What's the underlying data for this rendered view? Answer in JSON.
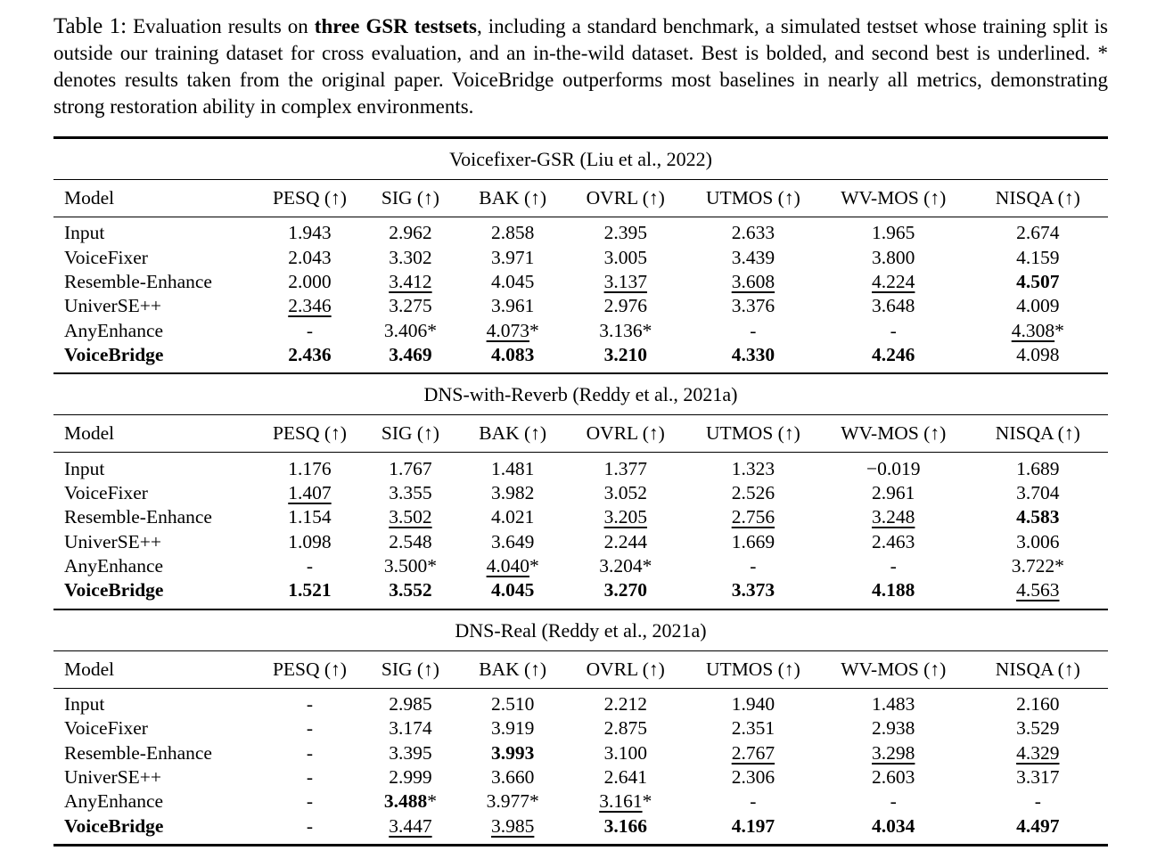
{
  "caption": {
    "label": "Table 1:",
    "pre": " Evaluation results on ",
    "bold": "three GSR testsets",
    "post": ", including a standard benchmark, a simulated testset whose training split is outside our training dataset for cross evaluation, and an in-the-wild dataset.  Best is bolded, and second best is underlined.  * denotes results taken from the original paper.  VoiceBridge outperforms most baselines in nearly all metrics, demonstrating strong restoration ability in complex environments."
  },
  "columns": [
    "Model",
    "PESQ (↑)",
    "SIG (↑)",
    "BAK (↑)",
    "OVRL (↑)",
    "UTMOS (↑)",
    "WV-MOS (↑)",
    "NISQA (↑)"
  ],
  "chart_data": [
    {
      "type": "table",
      "title": "Voicefixer-GSR (Liu et al., 2022)",
      "rows": [
        [
          {
            "t": "Input"
          },
          {
            "t": "1.943"
          },
          {
            "t": "2.962"
          },
          {
            "t": "2.858"
          },
          {
            "t": "2.395"
          },
          {
            "t": "2.633"
          },
          {
            "t": "1.965"
          },
          {
            "t": "2.674"
          }
        ],
        [
          {
            "t": "VoiceFixer"
          },
          {
            "t": "2.043"
          },
          {
            "t": "3.302"
          },
          {
            "t": "3.971"
          },
          {
            "t": "3.005"
          },
          {
            "t": "3.439"
          },
          {
            "t": "3.800"
          },
          {
            "t": "4.159"
          }
        ],
        [
          {
            "t": "Resemble-Enhance"
          },
          {
            "t": "2.000"
          },
          {
            "t": "3.412",
            "u": true
          },
          {
            "t": "4.045"
          },
          {
            "t": "3.137",
            "u": true
          },
          {
            "t": "3.608",
            "u": true
          },
          {
            "t": "4.224",
            "u": true
          },
          {
            "t": "4.507",
            "b": true
          }
        ],
        [
          {
            "t": "UniverSE++"
          },
          {
            "t": "2.346",
            "u": true
          },
          {
            "t": "3.275"
          },
          {
            "t": "3.961"
          },
          {
            "t": "2.976"
          },
          {
            "t": "3.376"
          },
          {
            "t": "3.648"
          },
          {
            "t": "4.009"
          }
        ],
        [
          {
            "t": "AnyEnhance"
          },
          {
            "t": "-"
          },
          {
            "t": "3.406",
            "star": true
          },
          {
            "t": "4.073",
            "u": true,
            "star": true
          },
          {
            "t": "3.136",
            "star": true
          },
          {
            "t": "-"
          },
          {
            "t": "-"
          },
          {
            "t": "4.308",
            "u": true,
            "star": true
          }
        ],
        [
          {
            "t": "VoiceBridge",
            "b": true
          },
          {
            "t": "2.436",
            "b": true
          },
          {
            "t": "3.469",
            "b": true
          },
          {
            "t": "4.083",
            "b": true
          },
          {
            "t": "3.210",
            "b": true
          },
          {
            "t": "4.330",
            "b": true
          },
          {
            "t": "4.246",
            "b": true
          },
          {
            "t": "4.098"
          }
        ]
      ]
    },
    {
      "type": "table",
      "title": "DNS-with-Reverb (Reddy et al., 2021a)",
      "rows": [
        [
          {
            "t": "Input"
          },
          {
            "t": "1.176"
          },
          {
            "t": "1.767"
          },
          {
            "t": "1.481"
          },
          {
            "t": "1.377"
          },
          {
            "t": "1.323"
          },
          {
            "t": "−0.019"
          },
          {
            "t": "1.689"
          }
        ],
        [
          {
            "t": "VoiceFixer"
          },
          {
            "t": "1.407",
            "u": true
          },
          {
            "t": "3.355"
          },
          {
            "t": "3.982"
          },
          {
            "t": "3.052"
          },
          {
            "t": "2.526"
          },
          {
            "t": "2.961"
          },
          {
            "t": "3.704"
          }
        ],
        [
          {
            "t": "Resemble-Enhance"
          },
          {
            "t": "1.154"
          },
          {
            "t": "3.502",
            "u": true
          },
          {
            "t": "4.021"
          },
          {
            "t": "3.205",
            "u": true
          },
          {
            "t": "2.756",
            "u": true
          },
          {
            "t": "3.248",
            "u": true
          },
          {
            "t": "4.583",
            "b": true
          }
        ],
        [
          {
            "t": "UniverSE++"
          },
          {
            "t": "1.098"
          },
          {
            "t": "2.548"
          },
          {
            "t": "3.649"
          },
          {
            "t": "2.244"
          },
          {
            "t": "1.669"
          },
          {
            "t": "2.463"
          },
          {
            "t": "3.006"
          }
        ],
        [
          {
            "t": "AnyEnhance"
          },
          {
            "t": "-"
          },
          {
            "t": "3.500",
            "star": true
          },
          {
            "t": "4.040",
            "u": true,
            "star": true
          },
          {
            "t": "3.204",
            "star": true
          },
          {
            "t": "-"
          },
          {
            "t": "-"
          },
          {
            "t": "3.722",
            "star": true
          }
        ],
        [
          {
            "t": "VoiceBridge",
            "b": true
          },
          {
            "t": "1.521",
            "b": true
          },
          {
            "t": "3.552",
            "b": true
          },
          {
            "t": "4.045",
            "b": true
          },
          {
            "t": "3.270",
            "b": true
          },
          {
            "t": "3.373",
            "b": true
          },
          {
            "t": "4.188",
            "b": true
          },
          {
            "t": "4.563",
            "u": true
          }
        ]
      ]
    },
    {
      "type": "table",
      "title": "DNS-Real (Reddy et al., 2021a)",
      "rows": [
        [
          {
            "t": "Input"
          },
          {
            "t": "-"
          },
          {
            "t": "2.985"
          },
          {
            "t": "2.510"
          },
          {
            "t": "2.212"
          },
          {
            "t": "1.940"
          },
          {
            "t": "1.483"
          },
          {
            "t": "2.160"
          }
        ],
        [
          {
            "t": "VoiceFixer"
          },
          {
            "t": "-"
          },
          {
            "t": "3.174"
          },
          {
            "t": "3.919"
          },
          {
            "t": "2.875"
          },
          {
            "t": "2.351"
          },
          {
            "t": "2.938"
          },
          {
            "t": "3.529"
          }
        ],
        [
          {
            "t": "Resemble-Enhance"
          },
          {
            "t": "-"
          },
          {
            "t": "3.395"
          },
          {
            "t": "3.993",
            "b": true
          },
          {
            "t": "3.100"
          },
          {
            "t": "2.767",
            "u": true
          },
          {
            "t": "3.298",
            "u": true
          },
          {
            "t": "4.329",
            "u": true
          }
        ],
        [
          {
            "t": "UniverSE++"
          },
          {
            "t": "-"
          },
          {
            "t": "2.999"
          },
          {
            "t": "3.660"
          },
          {
            "t": "2.641"
          },
          {
            "t": "2.306"
          },
          {
            "t": "2.603"
          },
          {
            "t": "3.317"
          }
        ],
        [
          {
            "t": "AnyEnhance"
          },
          {
            "t": "-"
          },
          {
            "t": "3.488",
            "b": true,
            "star": true
          },
          {
            "t": "3.977",
            "star": true
          },
          {
            "t": "3.161",
            "u": true,
            "star": true
          },
          {
            "t": "-"
          },
          {
            "t": "-"
          },
          {
            "t": "-"
          }
        ],
        [
          {
            "t": "VoiceBridge",
            "b": true
          },
          {
            "t": "-"
          },
          {
            "t": "3.447",
            "u": true
          },
          {
            "t": "3.985",
            "u": true
          },
          {
            "t": "3.166",
            "b": true
          },
          {
            "t": "4.197",
            "b": true
          },
          {
            "t": "4.034",
            "b": true
          },
          {
            "t": "4.497",
            "b": true
          }
        ]
      ]
    }
  ]
}
